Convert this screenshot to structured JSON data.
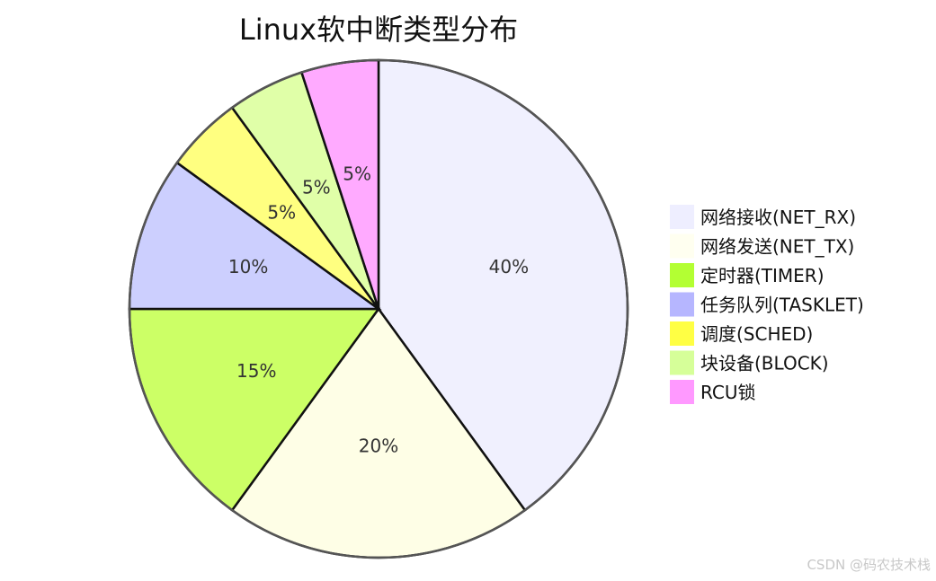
{
  "chart_data": {
    "type": "pie",
    "title": "Linux软中断类型分布",
    "slices": [
      {
        "name": "网络接收(NET_RX)",
        "value": 40,
        "label": "40%",
        "color": "#f0f0fe"
      },
      {
        "name": "网络发送(NET_TX)",
        "value": 20,
        "label": "20%",
        "color": "#fefee6"
      },
      {
        "name": "定时器(TIMER)",
        "value": 15,
        "label": "15%",
        "color": "#ccff66"
      },
      {
        "name": "任务队列(TASKLET)",
        "value": 10,
        "label": "10%",
        "color": "#cccffe"
      },
      {
        "name": "调度(SCHED)",
        "value": 5,
        "label": "5%",
        "color": "#ffff80"
      },
      {
        "name": "块设备(BLOCK)",
        "value": 5,
        "label": "5%",
        "color": "#e0ffa8"
      },
      {
        "name": "RCU锁",
        "value": 5,
        "label": "5%",
        "color": "#ffaaff"
      }
    ],
    "legend": {
      "placement": "right",
      "items": [
        {
          "label": "网络接收(NET_RX)",
          "color": "#eeeeff"
        },
        {
          "label": "网络发送(NET_TX)",
          "color": "#fffff0"
        },
        {
          "label": "定时器(TIMER)",
          "color": "#b3ff33"
        },
        {
          "label": "任务队列(TASKLET)",
          "color": "#b6b6ff"
        },
        {
          "label": "调度(SCHED)",
          "color": "#ffff44"
        },
        {
          "label": "块设备(BLOCK)",
          "color": "#d6ff99"
        },
        {
          "label": "RCU锁",
          "color": "#ff99ff"
        }
      ]
    }
  },
  "watermark": "CSDN @码农技术栈"
}
